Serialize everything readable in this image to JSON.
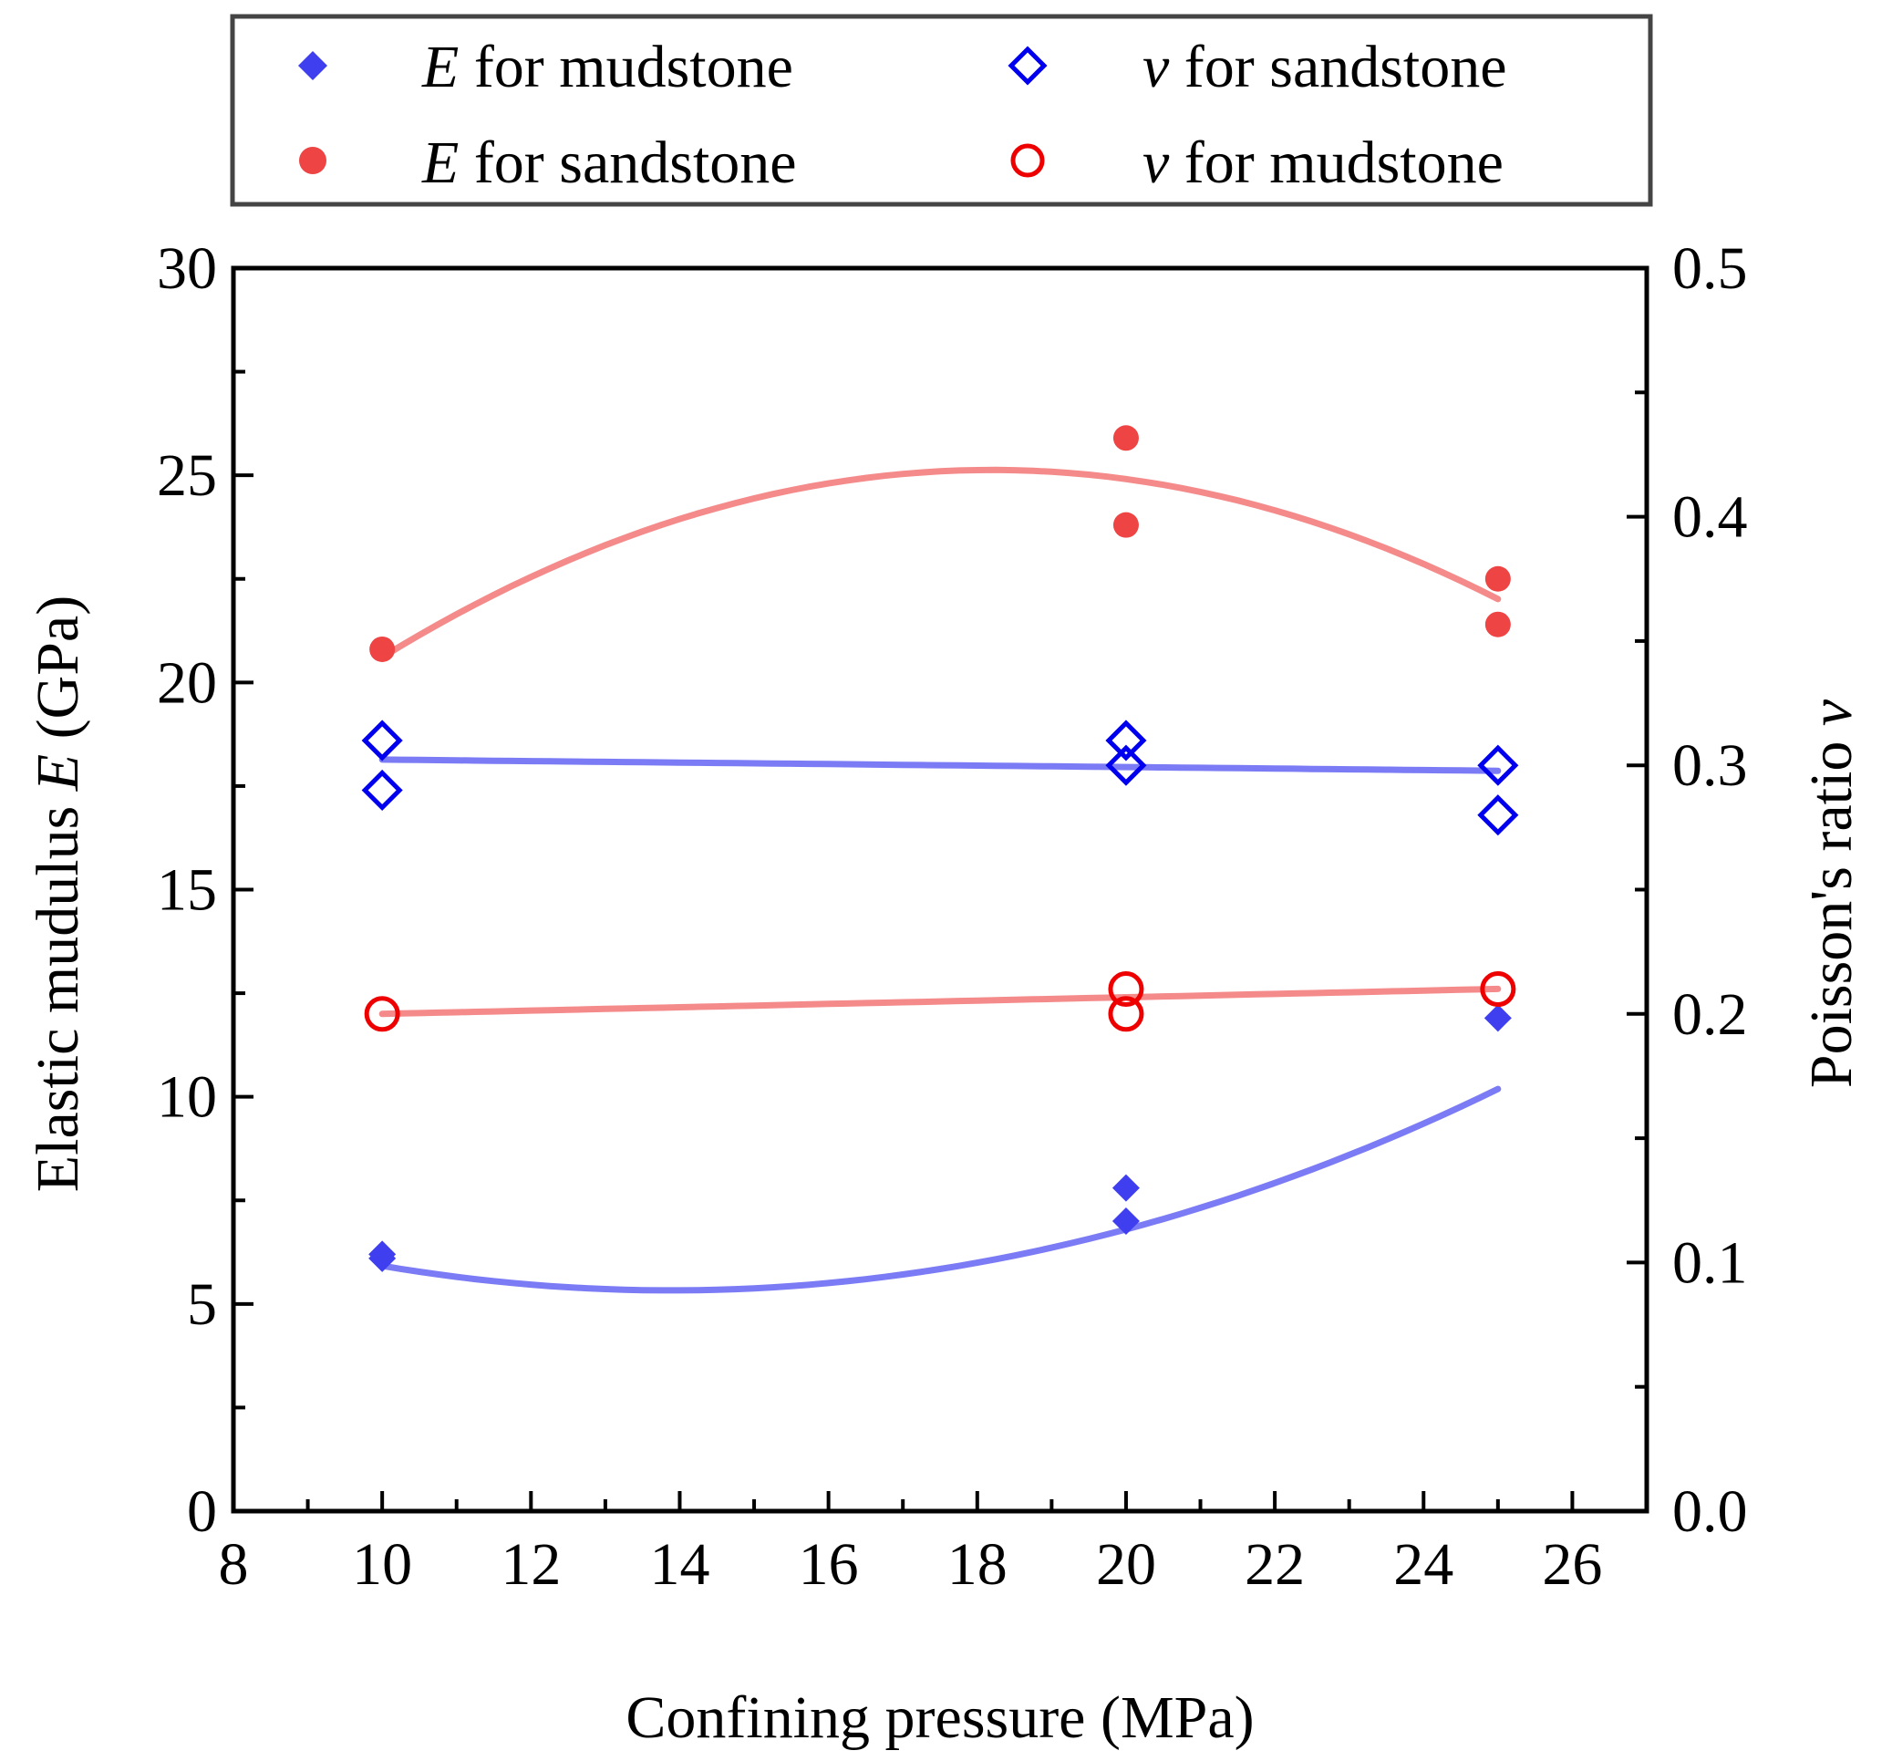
{
  "chart_data": {
    "type": "scatter",
    "xlabel": "Confining pressure (MPa)",
    "ylabel_left": {
      "text": "Elastic mudulus ",
      "symbol": "E",
      "unit": " (GPa)"
    },
    "ylabel_right": {
      "text": "Poisson's ratio ",
      "symbol": "v"
    },
    "xlim": [
      8,
      27
    ],
    "ylim_left": [
      0,
      30
    ],
    "ylim_right": [
      0.0,
      0.5
    ],
    "xticks": [
      "8",
      "10",
      "12",
      "14",
      "16",
      "18",
      "20",
      "22",
      "24",
      "26"
    ],
    "yticks_left": [
      "0",
      "5",
      "10",
      "15",
      "20",
      "25",
      "30"
    ],
    "yticks_right": [
      "0.0",
      "0.1",
      "0.2",
      "0.3",
      "0.4",
      "0.5"
    ],
    "legend_position": "top",
    "series": [
      {
        "name": "E for mudstone",
        "symbol": "E",
        "label": "for mudstone",
        "axis": "left",
        "marker": "filled-diamond",
        "color": "#3f3ff0",
        "fit_color": "#7b7bf5",
        "points": [
          [
            10,
            6.1
          ],
          [
            10,
            6.2
          ],
          [
            20,
            7.8
          ],
          [
            20,
            7.0
          ],
          [
            25,
            11.9
          ]
        ],
        "fit": [
          0.0393,
          -1.091,
          12.9
        ]
      },
      {
        "name": "E for sandstone",
        "symbol": "E",
        "label": "for sandstone",
        "axis": "left",
        "marker": "filled-circle",
        "color": "#ee4444",
        "fit_color": "#f58a8a",
        "points": [
          [
            10,
            20.8
          ],
          [
            20,
            25.9
          ],
          [
            20,
            23.8
          ],
          [
            25,
            22.5
          ],
          [
            25,
            21.4
          ]
        ],
        "fit": [
          -0.0673,
          2.449,
          2.849
        ]
      },
      {
        "name": "v for sandstone",
        "symbol": "v",
        "label": "for sandstone",
        "axis": "right",
        "marker": "open-diamond",
        "color": "#0000ee",
        "fit_color": "#7b7bf5",
        "points": [
          [
            10,
            0.31
          ],
          [
            10,
            0.29
          ],
          [
            20,
            0.31
          ],
          [
            20,
            0.3
          ],
          [
            25,
            0.3
          ],
          [
            25,
            0.28
          ]
        ],
        "fit": [
          0,
          -0.0003,
          0.3053
        ]
      },
      {
        "name": "v for mudstone",
        "symbol": "v",
        "label": "for mudstone",
        "axis": "right",
        "marker": "open-circle",
        "color": "#ee0000",
        "fit_color": "#f58a8a",
        "points": [
          [
            10,
            0.2
          ],
          [
            20,
            0.21
          ],
          [
            20,
            0.2
          ],
          [
            25,
            0.21
          ]
        ],
        "fit": [
          0,
          0.00067,
          0.1933
        ]
      }
    ]
  }
}
